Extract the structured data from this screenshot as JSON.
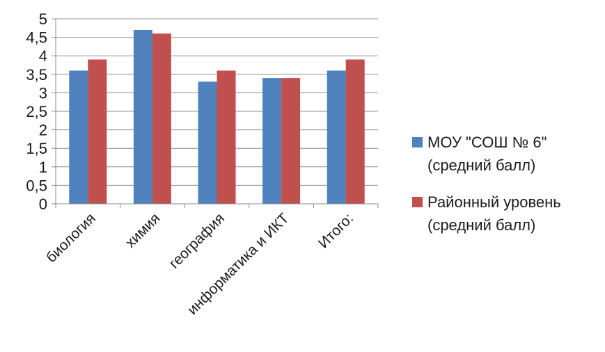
{
  "chart_data": {
    "type": "bar",
    "categories": [
      "биология",
      "химия",
      "география",
      "информатика и ИКТ",
      "Итого:"
    ],
    "series": [
      {
        "name": "МОУ \"СОШ № 6\" (средний балл)",
        "legend_lines": [
          "МОУ \"СОШ № 6\"",
          "(средний балл)"
        ],
        "color": "#4f81bd",
        "values": [
          3.6,
          4.7,
          3.3,
          3.4,
          3.6
        ]
      },
      {
        "name": "Районный уровень (средний балл)",
        "legend_lines": [
          "Районный уровень",
          "(средний балл)"
        ],
        "color": "#c0504d",
        "values": [
          3.9,
          4.6,
          3.6,
          3.4,
          3.9
        ]
      }
    ],
    "y_ticks": [
      "0",
      "0,5",
      "1",
      "1,5",
      "2",
      "2,5",
      "3",
      "3,5",
      "4",
      "4,5",
      "5"
    ],
    "ylim": [
      0,
      5
    ],
    "grid": true,
    "legend_position": "right",
    "title": "",
    "xlabel": "",
    "ylabel": ""
  }
}
